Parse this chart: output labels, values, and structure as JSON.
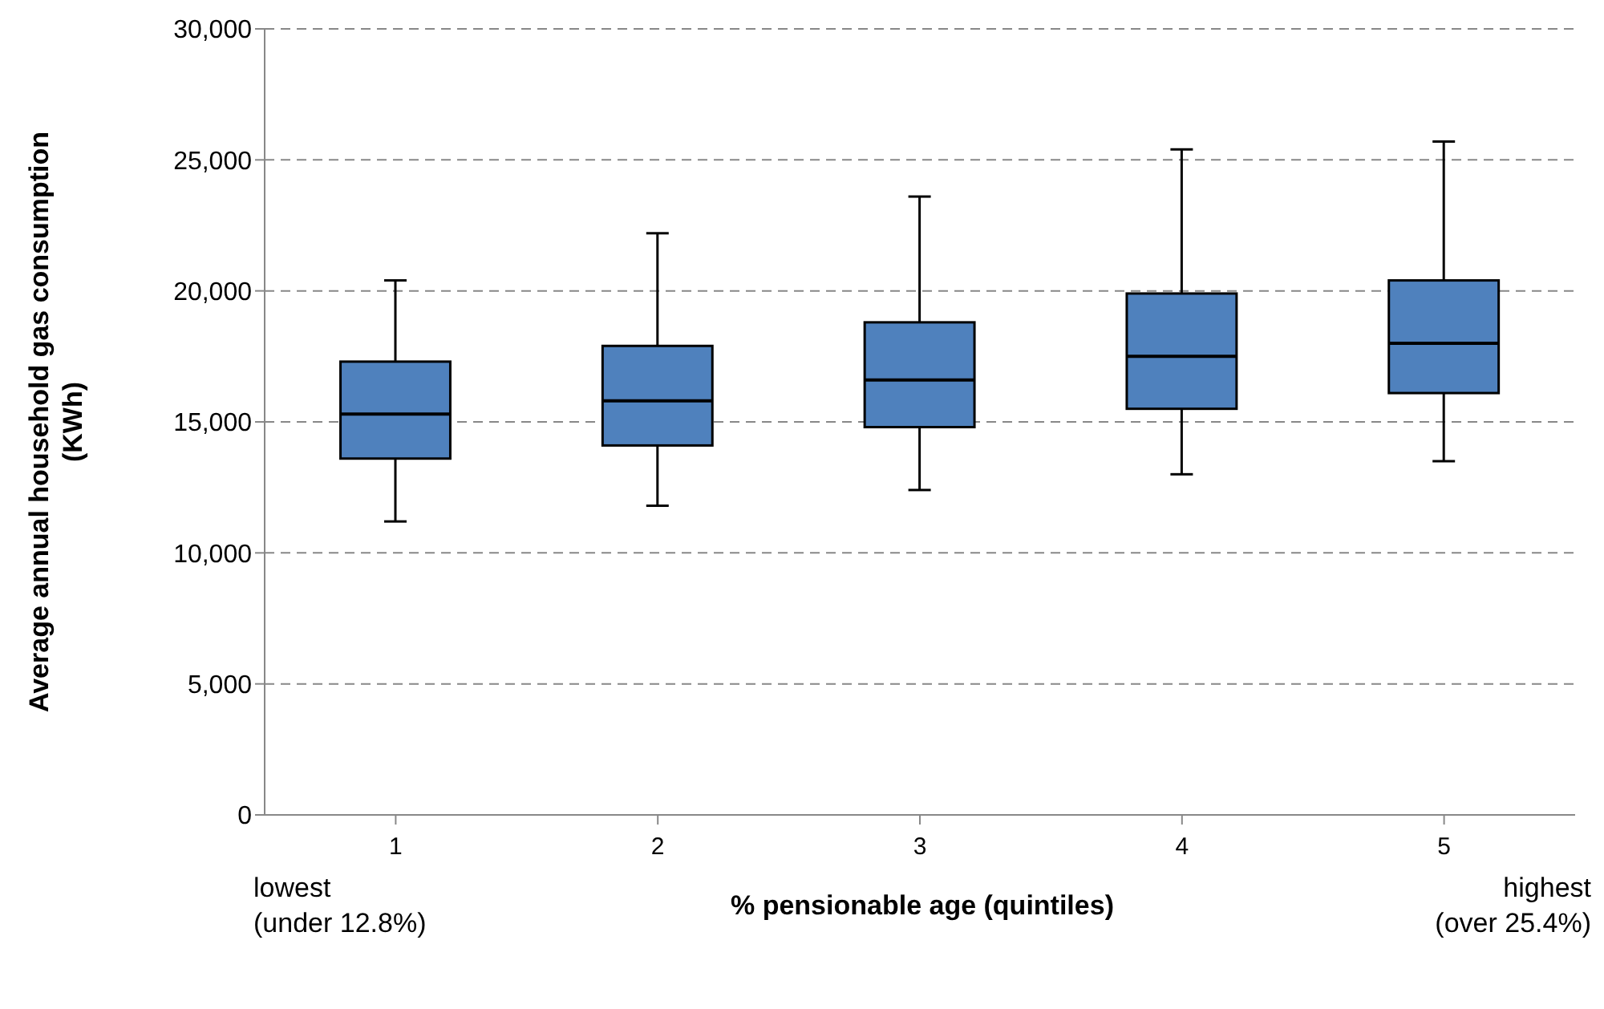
{
  "chart_data": {
    "type": "box",
    "xlabel": "% pensionable age (quintiles)",
    "ylabel": "Average annual household gas consumption (KWh)",
    "categories": [
      "1",
      "2",
      "3",
      "4",
      "5"
    ],
    "boxes": [
      {
        "low": 11200,
        "q1": 13600,
        "median": 15300,
        "q3": 17300,
        "high": 20400
      },
      {
        "low": 11800,
        "q1": 14100,
        "median": 15800,
        "q3": 17900,
        "high": 22200
      },
      {
        "low": 12400,
        "q1": 14800,
        "median": 16600,
        "q3": 18800,
        "high": 23600
      },
      {
        "low": 13000,
        "q1": 15500,
        "median": 17500,
        "q3": 19900,
        "high": 25400
      },
      {
        "low": 13500,
        "q1": 16100,
        "median": 18000,
        "q3": 20400,
        "high": 25700
      }
    ],
    "color": "#4f81bd",
    "ylim": [
      0,
      30000
    ],
    "yticks": [
      {
        "value": 0,
        "label": "0"
      },
      {
        "value": 5000,
        "label": "5,000"
      },
      {
        "value": 10000,
        "label": "10,000"
      },
      {
        "value": 15000,
        "label": "15,000"
      },
      {
        "value": 20000,
        "label": "20,000"
      },
      {
        "value": 25000,
        "label": "25,000"
      },
      {
        "value": 30000,
        "label": "30,000"
      }
    ],
    "grid": "y",
    "legend": false,
    "annotations": [
      "lowest\n(under 12.8%)",
      "highest\n(over 25.4%)"
    ]
  }
}
